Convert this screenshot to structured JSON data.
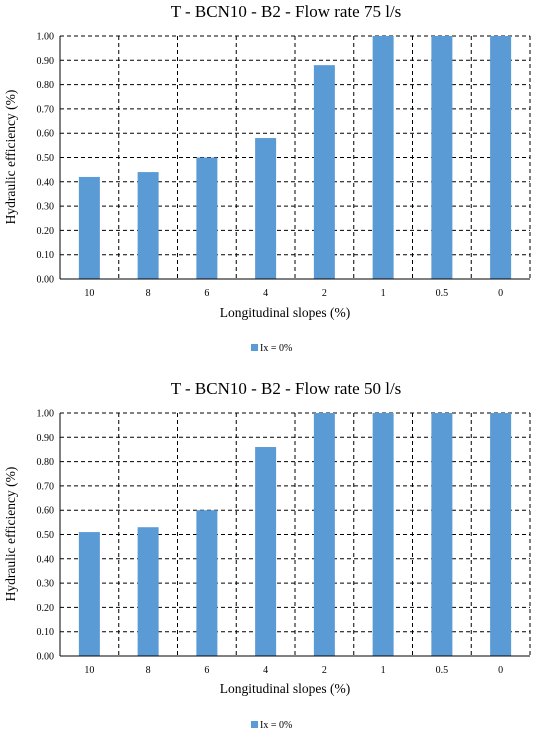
{
  "colors": {
    "bar": "#5b9bd5",
    "grid": "#000000",
    "axis": "#000000"
  },
  "chart_data": [
    {
      "type": "bar",
      "title": "T - BCN10 - B2 - Flow rate 75 l/s",
      "xlabel": "Longitudinal slopes (%)",
      "ylabel": "Hydraulic efficiency  (%)",
      "categories": [
        "10",
        "8",
        "6",
        "4",
        "2",
        "1",
        "0.5",
        "0"
      ],
      "series": [
        {
          "name": "Ix = 0%",
          "values": [
            0.42,
            0.44,
            0.5,
            0.58,
            0.88,
            1.0,
            1.0,
            1.0
          ]
        }
      ],
      "ylim": [
        0,
        1
      ],
      "yticks": [
        "0.00",
        "0.10",
        "0.20",
        "0.30",
        "0.40",
        "0.50",
        "0.60",
        "0.70",
        "0.80",
        "0.90",
        "1.00"
      ],
      "grid": true,
      "legend": "bottom-center"
    },
    {
      "type": "bar",
      "title": "T - BCN10 - B2 - Flow rate 50 l/s",
      "xlabel": "Longitudinal slopes (%)",
      "ylabel": "Hydraulic efficiency  (%)",
      "categories": [
        "10",
        "8",
        "6",
        "4",
        "2",
        "1",
        "0.5",
        "0"
      ],
      "series": [
        {
          "name": "Ix = 0%",
          "values": [
            0.51,
            0.53,
            0.6,
            0.86,
            1.0,
            1.0,
            1.0,
            1.0
          ]
        }
      ],
      "ylim": [
        0,
        1
      ],
      "yticks": [
        "0.00",
        "0.10",
        "0.20",
        "0.30",
        "0.40",
        "0.50",
        "0.60",
        "0.70",
        "0.80",
        "0.90",
        "1.00"
      ],
      "grid": true,
      "legend": "bottom-center"
    }
  ]
}
